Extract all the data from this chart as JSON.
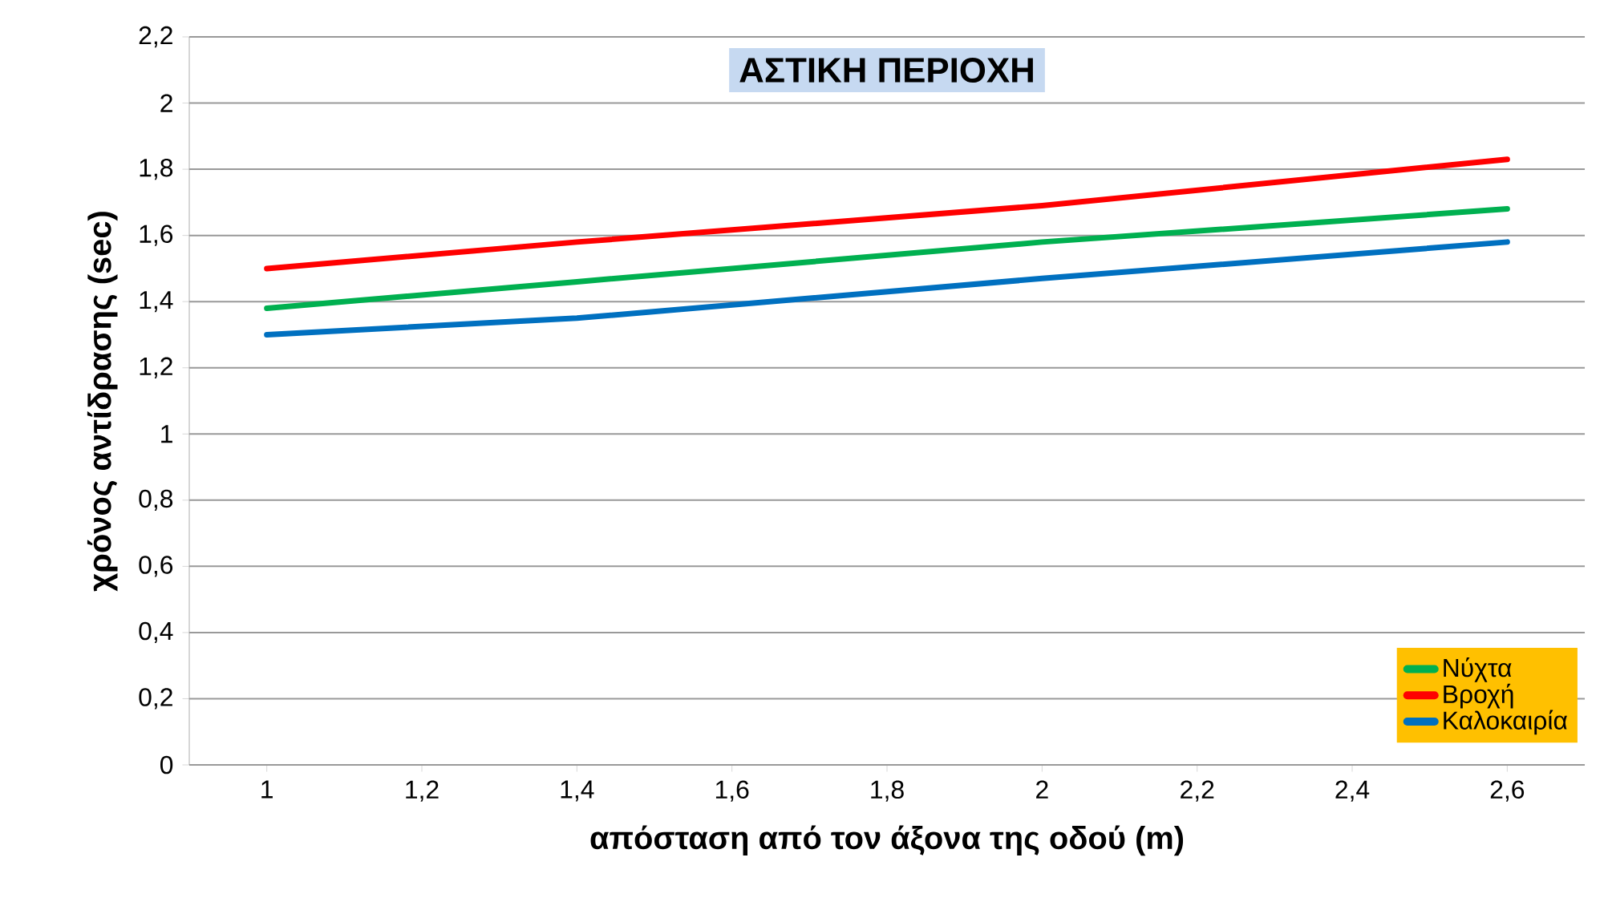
{
  "chart_data": {
    "type": "line",
    "title": "ΑΣΤΙΚΗ ΠΕΡΙΟΧΗ",
    "xlabel": "απόσταση από τον άξονα της οδού (m)",
    "ylabel": "χρόνος αντίδρασης (sec)",
    "x": [
      1,
      1.4,
      2,
      2.6
    ],
    "series": [
      {
        "name": "Νύχτα",
        "color": "#00b050",
        "values": [
          1.38,
          1.46,
          1.58,
          1.68
        ]
      },
      {
        "name": "Βροχή",
        "color": "#ff0000",
        "values": [
          1.5,
          1.58,
          1.69,
          1.83
        ]
      },
      {
        "name": "Καλοκαιρία",
        "color": "#0070c0",
        "values": [
          1.3,
          1.35,
          1.47,
          1.58
        ]
      }
    ],
    "xlim": [
      0.9,
      2.7
    ],
    "ylim": [
      0,
      2.2
    ],
    "xticks": [
      1,
      {
        "value": 1.2,
        "label": "1,2"
      },
      {
        "value": 1.4,
        "label": "1,4"
      },
      {
        "value": 1.6,
        "label": "1,6"
      },
      {
        "value": 1.8,
        "label": "1,8"
      },
      2,
      {
        "value": 2.2,
        "label": "2,2"
      },
      {
        "value": 2.4,
        "label": "2,4"
      },
      {
        "value": 2.6,
        "label": "2,6"
      }
    ],
    "yticks": [
      0,
      {
        "value": 0.2,
        "label": "0,2"
      },
      {
        "value": 0.4,
        "label": "0,4"
      },
      {
        "value": 0.6,
        "label": "0,6"
      },
      {
        "value": 0.8,
        "label": "0,8"
      },
      1,
      {
        "value": 1.2,
        "label": "1,2"
      },
      {
        "value": 1.4,
        "label": "1,4"
      },
      {
        "value": 1.6,
        "label": "1,6"
      },
      {
        "value": 1.8,
        "label": "1,8"
      },
      2,
      {
        "value": 2.2,
        "label": "2,2"
      }
    ],
    "grid": "y",
    "legend": "bottom right",
    "marker": "none",
    "line_style": "solid"
  }
}
